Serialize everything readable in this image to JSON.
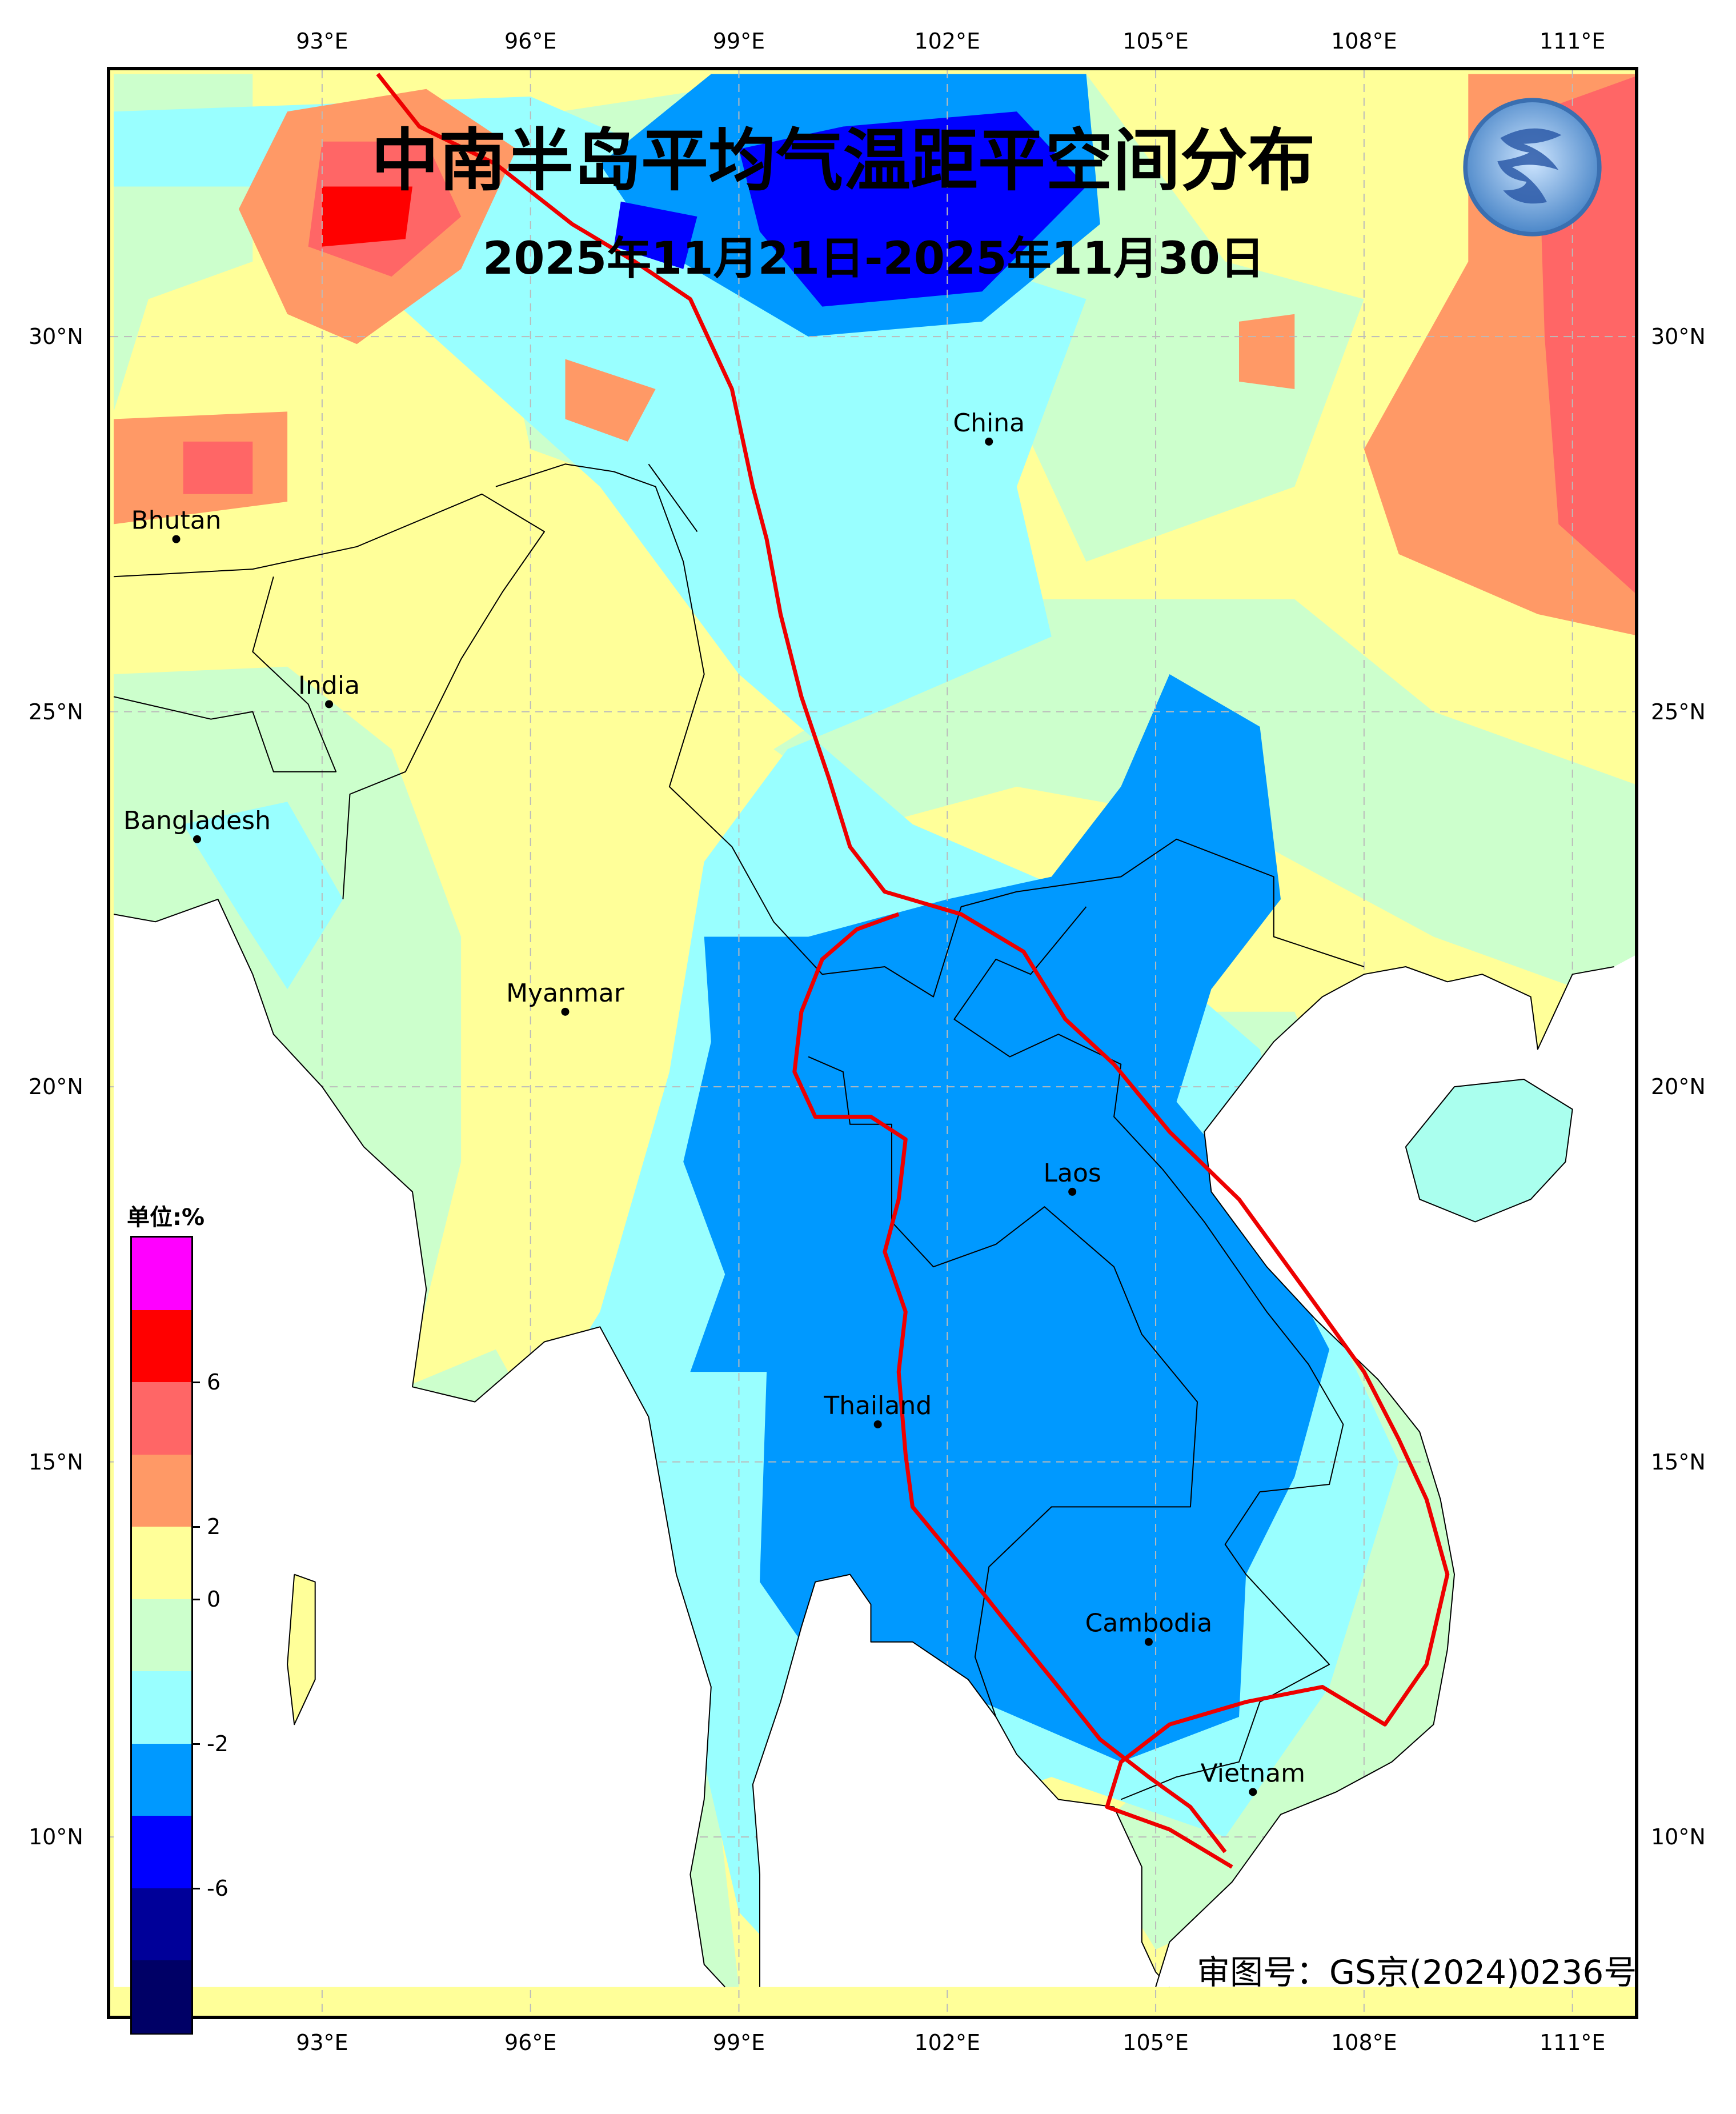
{
  "map": {
    "title": "中南半岛平均气温距平空间分布",
    "subtitle": "2025年11月21日-2025年11月30日",
    "approval_number": "审图号：GS京(2024)0236号",
    "logo_icon": "meteorological-logo-icon"
  },
  "axes": {
    "longitude_ticks": [
      "93°E",
      "96°E",
      "99°E",
      "102°E",
      "105°E",
      "108°E",
      "111°E"
    ],
    "latitude_ticks": [
      "30°N",
      "25°N",
      "20°N",
      "15°N",
      "10°N"
    ],
    "lon_range": [
      90,
      112
    ],
    "lat_range": [
      8,
      33
    ]
  },
  "legend": {
    "unit_label": "单位:%",
    "tick_labels": [
      "6",
      "2",
      "0",
      "-2",
      "-6"
    ],
    "colors": [
      "#ff00ff",
      "#ff0000",
      "#ff6666",
      "#ff9966",
      "#ffff99",
      "#ccffcc",
      "#99ffff",
      "#0099ff",
      "#0000ff",
      "#000099",
      "#000066"
    ]
  },
  "places": [
    {
      "name": "China",
      "lon": 102.6,
      "lat": 28.6
    },
    {
      "name": "Bhutan",
      "lon": 90.9,
      "lat": 27.3
    },
    {
      "name": "India",
      "lon": 93.1,
      "lat": 25.1
    },
    {
      "name": "Bangladesh",
      "lon": 91.2,
      "lat": 23.3
    },
    {
      "name": "Myanmar",
      "lon": 96.5,
      "lat": 21.0
    },
    {
      "name": "Laos",
      "lon": 103.8,
      "lat": 18.6
    },
    {
      "name": "Thailand",
      "lon": 101.0,
      "lat": 15.5
    },
    {
      "name": "Cambodia",
      "lon": 104.9,
      "lat": 12.6
    },
    {
      "name": "Vietnam",
      "lon": 106.4,
      "lat": 10.6
    }
  ],
  "colors": {
    "boundary_red": "#ee0000",
    "coast_black": "#000000",
    "gridline": "#bbbbbb"
  }
}
